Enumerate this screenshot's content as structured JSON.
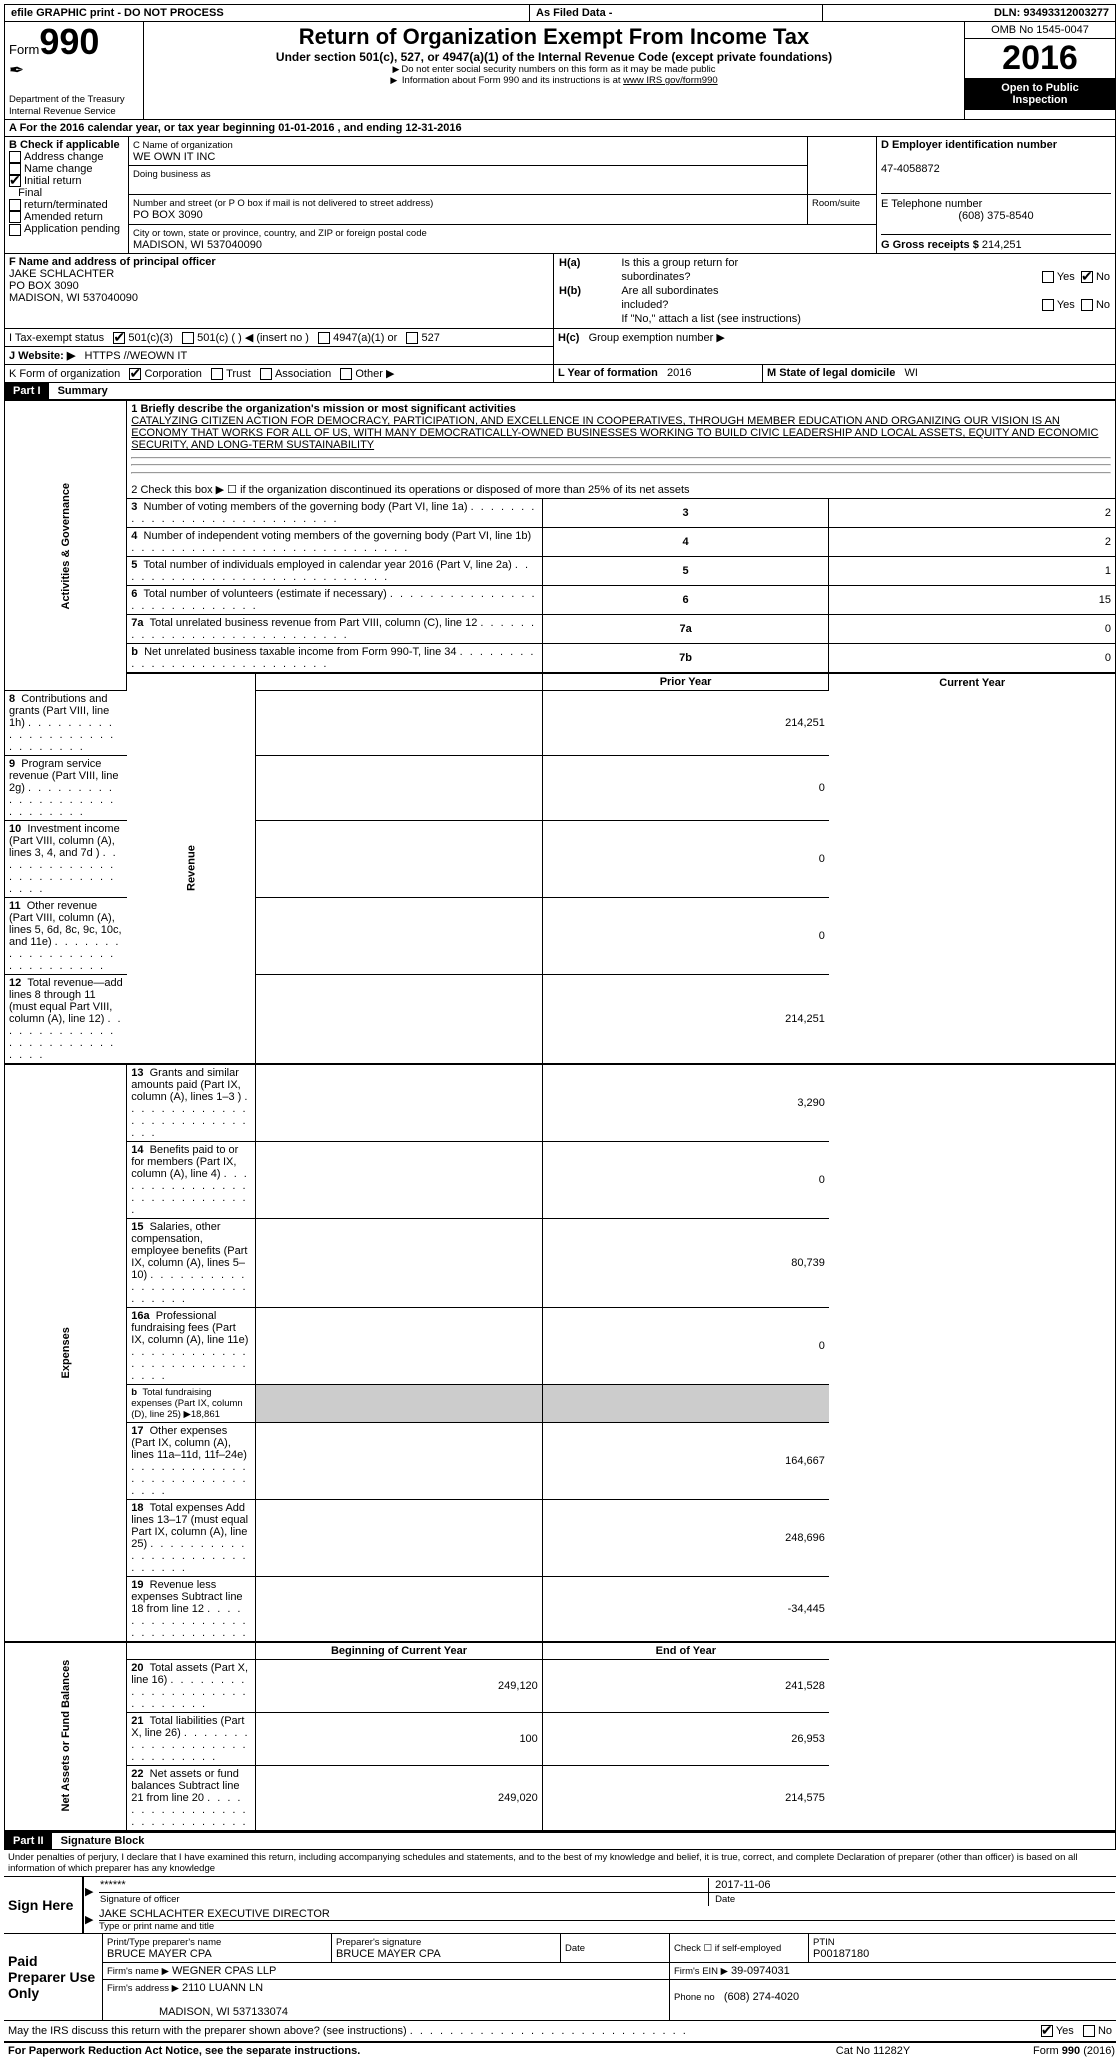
{
  "header": {
    "efile": "efile GRAPHIC print - DO NOT PROCESS",
    "as_filed": "As Filed Data -",
    "dln_label": "DLN:",
    "dln": "93493312003277"
  },
  "title_block": {
    "form_label": "Form",
    "form_number": "990",
    "dept1": "Department of the Treasury",
    "dept2": "Internal Revenue Service",
    "title": "Return of Organization Exempt From Income Tax",
    "subtitle": "Under section 501(c), 527, or 4947(a)(1) of the Internal Revenue Code (except private foundations)",
    "note1": "Do not enter social security numbers on this form as it may be made public",
    "note2_a": "Information about Form 990 and its instructions is at ",
    "note2_b": "www IRS gov/form990",
    "omb": "OMB No 1545-0047",
    "year": "2016",
    "open1": "Open to Public",
    "open2": "Inspection"
  },
  "section_a": {
    "line": "A  For the 2016 calendar year, or tax year beginning 01-01-2016   , and ending 12-31-2016"
  },
  "section_b": {
    "header": "B Check if applicable",
    "addr_change": "Address change",
    "name_change": "Name change",
    "initial_return": "Initial return",
    "final": "Final",
    "return_term": "return/terminated",
    "amended": "Amended return",
    "app_pending": "Application pending"
  },
  "section_c": {
    "name_label": "C Name of organization",
    "name": "WE OWN IT INC",
    "dba_label": "Doing business as",
    "addr_label": "Number and street (or P O  box if mail is not delivered to street address)",
    "room_label": "Room/suite",
    "addr": "PO BOX 3090",
    "city_label": "City or town, state or province, country, and ZIP or foreign postal code",
    "city": "MADISON, WI  537040090"
  },
  "section_d": {
    "label": "D Employer identification number",
    "ein": "47-4058872"
  },
  "section_e": {
    "label": "E Telephone number",
    "phone": "(608) 375-8540"
  },
  "section_g": {
    "label": "G Gross receipts $",
    "amount": "214,251"
  },
  "section_f": {
    "label": "F  Name and address of principal officer",
    "name": "JAKE SCHLACHTER",
    "addr": "PO BOX 3090",
    "city": "MADISON, WI  537040090"
  },
  "section_h": {
    "ha_label": "H(a)",
    "ha_text": "Is this a group return for",
    "ha_text2": "subordinates?",
    "hb_label": "H(b)",
    "hb_text": "Are all subordinates",
    "hb_text2": "included?",
    "hb_note": "If \"No,\" attach a list  (see instructions)",
    "hc_label": "H(c)",
    "hc_text": "Group exemption number ▶",
    "yes": "Yes",
    "no": "No"
  },
  "section_i": {
    "label": "I   Tax-exempt status",
    "c3": "501(c)(3)",
    "c_blank": "501(c) (   ) ◀ (insert no )",
    "a1": "4947(a)(1) or",
    "s527": "527"
  },
  "section_j": {
    "label": "J   Website: ▶",
    "site": "HTTPS //WEOWN IT"
  },
  "section_k": {
    "label": "K Form of organization",
    "corp": "Corporation",
    "trust": "Trust",
    "assoc": "Association",
    "other": "Other ▶"
  },
  "section_l": {
    "label": "L Year of formation",
    "year": "2016"
  },
  "section_m": {
    "label": "M State of legal domicile",
    "state": "WI"
  },
  "part1": {
    "hdr": "Part I",
    "title": "Summary",
    "line1_label": "1 Briefly describe the organization's mission or most significant activities",
    "line1_text": "CATALYZING CITIZEN ACTION FOR DEMOCRACY, PARTICIPATION, AND EXCELLENCE IN COOPERATIVES, THROUGH MEMBER EDUCATION AND ORGANIZING  OUR VISION IS AN ECONOMY THAT WORKS FOR ALL OF US, WITH MANY DEMOCRATICALLY-OWNED BUSINESSES WORKING TO BUILD CIVIC LEADERSHIP AND LOCAL ASSETS, EQUITY AND ECONOMIC SECURITY, AND LONG-TERM SUSTAINABILITY",
    "line2": "2  Check this box ▶ ☐  if the organization discontinued its operations or disposed of more than 25% of its net assets",
    "gov_rows": [
      {
        "n": "3",
        "t": "Number of voting members of the governing body (Part VI, line 1a)",
        "k": "3",
        "v": "2"
      },
      {
        "n": "4",
        "t": "Number of independent voting members of the governing body (Part VI, line 1b)",
        "k": "4",
        "v": "2"
      },
      {
        "n": "5",
        "t": "Total number of individuals employed in calendar year 2016 (Part V, line 2a)",
        "k": "5",
        "v": "1"
      },
      {
        "n": "6",
        "t": "Total number of volunteers (estimate if necessary)",
        "k": "6",
        "v": "15"
      },
      {
        "n": "7a",
        "t": "Total unrelated business revenue from Part VIII, column (C), line 12",
        "k": "7a",
        "v": "0"
      },
      {
        "n": "b",
        "t": "Net unrelated business taxable income from Form 990-T, line 34",
        "k": "7b",
        "v": "0"
      }
    ],
    "prior_year": "Prior Year",
    "current_year": "Current Year",
    "rev_rows": [
      {
        "n": "8",
        "t": "Contributions and grants (Part VIII, line 1h)",
        "py": "",
        "cy": "214,251"
      },
      {
        "n": "9",
        "t": "Program service revenue (Part VIII, line 2g)",
        "py": "",
        "cy": "0"
      },
      {
        "n": "10",
        "t": "Investment income (Part VIII, column (A), lines 3, 4, and 7d )",
        "py": "",
        "cy": "0"
      },
      {
        "n": "11",
        "t": "Other revenue (Part VIII, column (A), lines 5, 6d, 8c, 9c, 10c, and 11e)",
        "py": "",
        "cy": "0"
      },
      {
        "n": "12",
        "t": "Total revenue—add lines 8 through 11 (must equal Part VIII, column (A), line 12)",
        "py": "",
        "cy": "214,251"
      }
    ],
    "exp_rows": [
      {
        "n": "13",
        "t": "Grants and similar amounts paid (Part IX, column (A), lines 1–3 )",
        "py": "",
        "cy": "3,290"
      },
      {
        "n": "14",
        "t": "Benefits paid to or for members (Part IX, column (A), line 4)",
        "py": "",
        "cy": "0"
      },
      {
        "n": "15",
        "t": "Salaries, other compensation, employee benefits (Part IX, column (A), lines 5–10)",
        "py": "",
        "cy": "80,739"
      },
      {
        "n": "16a",
        "t": "Professional fundraising fees (Part IX, column (A), line 11e)",
        "py": "",
        "cy": "0"
      },
      {
        "n": "b",
        "t": "Total fundraising expenses (Part IX, column (D), line 25) ▶18,861",
        "py": null,
        "cy": null,
        "small": true
      },
      {
        "n": "17",
        "t": "Other expenses (Part IX, column (A), lines 11a–11d, 11f–24e)",
        "py": "",
        "cy": "164,667"
      },
      {
        "n": "18",
        "t": "Total expenses  Add lines 13–17 (must equal Part IX, column (A), line 25)",
        "py": "",
        "cy": "248,696"
      },
      {
        "n": "19",
        "t": "Revenue less expenses  Subtract line 18 from line 12",
        "py": "",
        "cy": "-34,445"
      }
    ],
    "bocy": "Beginning of Current Year",
    "eoy": "End of Year",
    "net_rows": [
      {
        "n": "20",
        "t": "Total assets (Part X, line 16)",
        "py": "249,120",
        "cy": "241,528"
      },
      {
        "n": "21",
        "t": "Total liabilities (Part X, line 26)",
        "py": "100",
        "cy": "26,953"
      },
      {
        "n": "22",
        "t": "Net assets or fund balances  Subtract line 21 from line 20",
        "py": "249,020",
        "cy": "214,575"
      }
    ],
    "side_gov": "Activities & Governance",
    "side_rev": "Revenue",
    "side_exp": "Expenses",
    "side_net": "Net Assets or Fund Balances"
  },
  "part2": {
    "hdr": "Part II",
    "title": "Signature Block",
    "perjury": "Under penalties of perjury, I declare that I have examined this return, including accompanying schedules and statements, and to the best of my knowledge and belief, it is true, correct, and complete  Declaration of preparer (other than officer) is based on all information of which preparer has any knowledge",
    "sign_here": "Sign Here",
    "sig_stars": "******",
    "sig_officer": "Signature of officer",
    "sig_date": "2017-11-06",
    "date_label": "Date",
    "officer_name": "JAKE SCHLACHTER  EXECUTIVE DIRECTOR",
    "type_name": "Type or print name and title",
    "paid": "Paid Preparer Use Only",
    "prep_name_label": "Print/Type preparer's name",
    "prep_name": "BRUCE MAYER CPA",
    "prep_sig_label": "Preparer's signature",
    "prep_sig": "BRUCE MAYER CPA",
    "prep_date": "Date",
    "check_if": "Check ☐ if self-employed",
    "ptin_label": "PTIN",
    "ptin": "P00187180",
    "firm_name_label": "Firm's name    ▶",
    "firm_name": "WEGNER CPAS LLP",
    "firm_ein_label": "Firm's EIN ▶",
    "firm_ein": "39-0974031",
    "firm_addr_label": "Firm's address ▶",
    "firm_addr": "2110 LUANN LN",
    "firm_city": "MADISON, WI  537133074",
    "phone_label": "Phone no",
    "phone": "(608) 274-4020"
  },
  "footer": {
    "discuss": "May the IRS discuss this return with the preparer shown above? (see instructions)",
    "yes": "Yes",
    "no": "No",
    "pra": "For Paperwork Reduction Act Notice, see the separate instructions.",
    "cat": "Cat  No 11282Y",
    "form": "Form 990 (2016)"
  }
}
